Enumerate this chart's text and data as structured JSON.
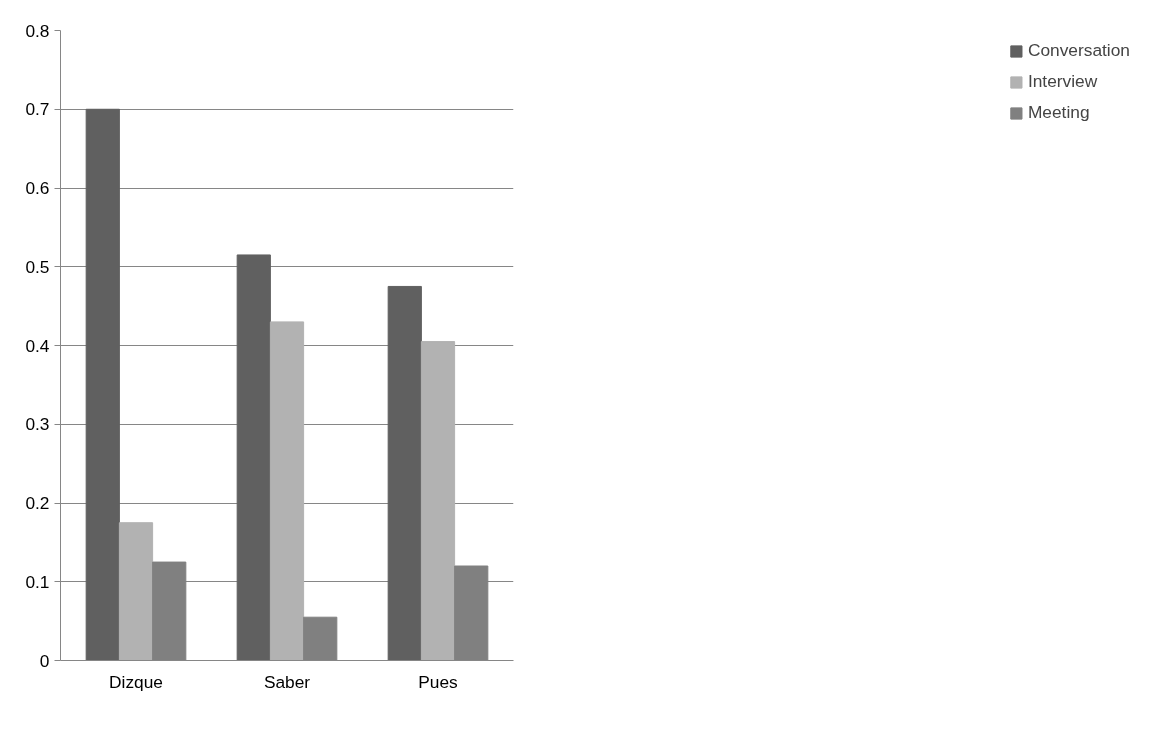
{
  "chart_data": {
    "type": "bar",
    "categories": [
      "Dizque",
      "Saber",
      "Pues"
    ],
    "series": [
      {
        "name": "Conversation",
        "color": "#606060",
        "values": [
          0.7,
          0.515,
          0.475
        ]
      },
      {
        "name": "Interview",
        "color": "#b2b2b2",
        "values": [
          0.175,
          0.43,
          0.405
        ]
      },
      {
        "name": "Meeting",
        "color": "#808080",
        "values": [
          0.125,
          0.055,
          0.12
        ]
      }
    ],
    "ylim": [
      0,
      0.8
    ],
    "yticks": [
      0,
      0.1,
      0.2,
      0.3,
      0.4,
      0.5,
      0.6,
      0.7,
      0.8
    ],
    "grid": "y",
    "legend": "right"
  }
}
